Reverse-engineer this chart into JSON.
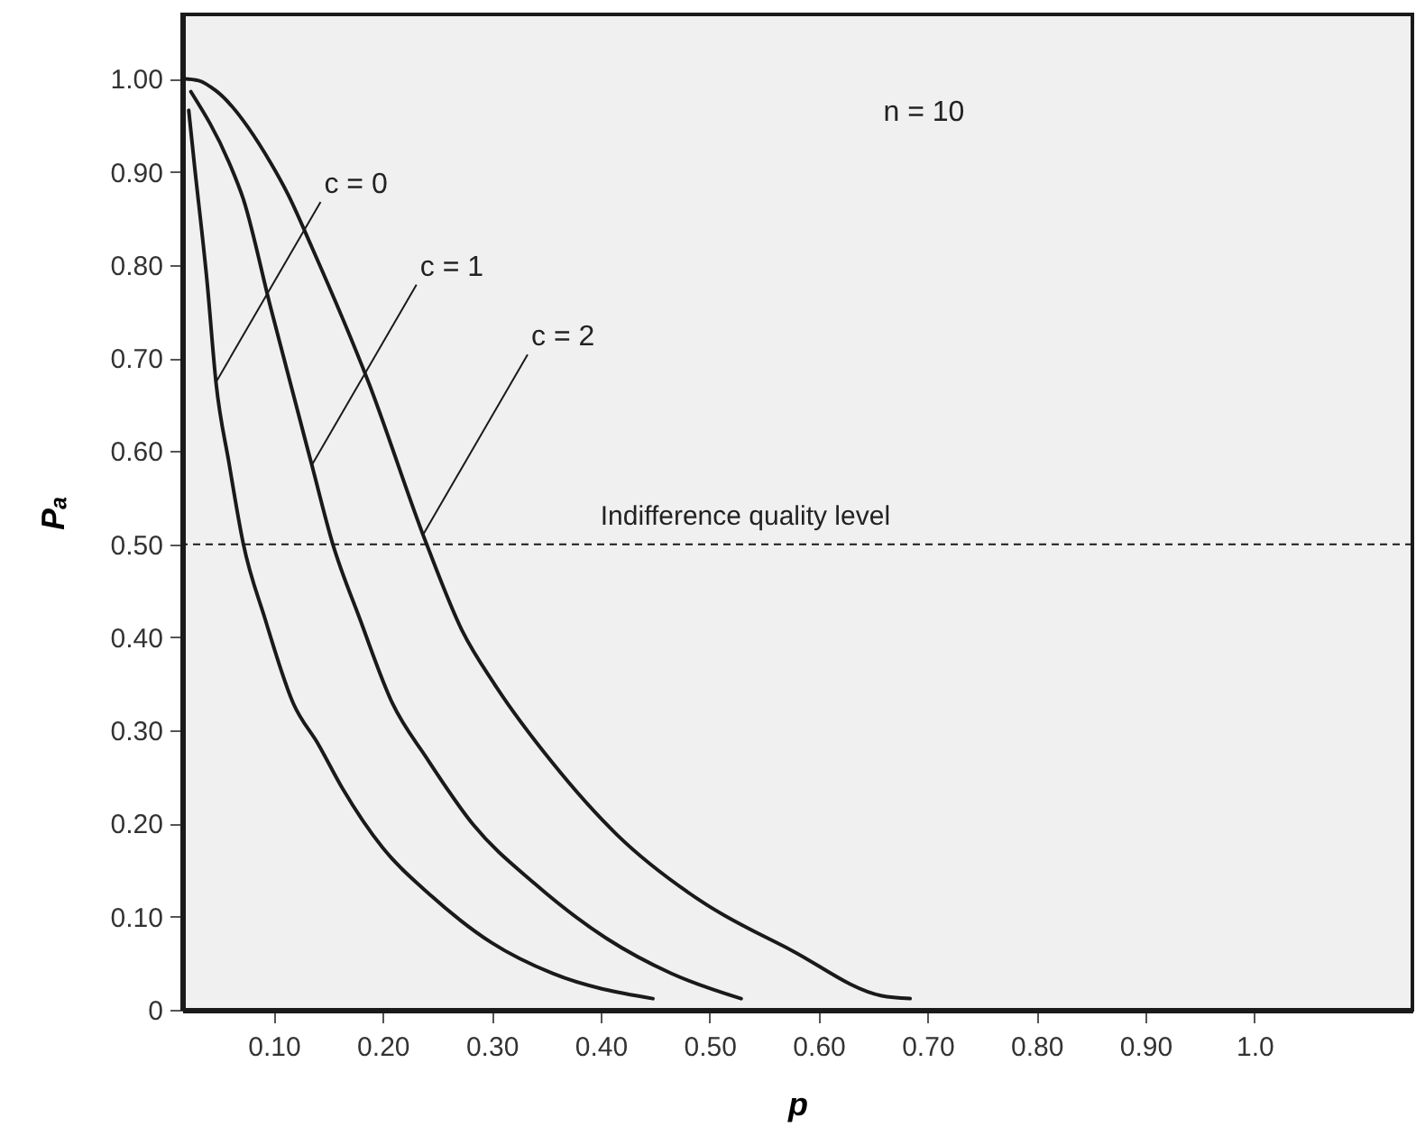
{
  "chart_data": {
    "type": "line",
    "xlabel": "p",
    "ylabel": "Pₐ",
    "xlim": [
      0.016,
      1.145
    ],
    "ylim": [
      0,
      1.069
    ],
    "xticks": [
      {
        "value": 0.1,
        "label": "0.10"
      },
      {
        "value": 0.2,
        "label": "0.20"
      },
      {
        "value": 0.3,
        "label": "0.30"
      },
      {
        "value": 0.4,
        "label": "0.40"
      },
      {
        "value": 0.5,
        "label": "0.50"
      },
      {
        "value": 0.6,
        "label": "0.60"
      },
      {
        "value": 0.7,
        "label": "0.70"
      },
      {
        "value": 0.8,
        "label": "0.80"
      },
      {
        "value": 0.9,
        "label": "0.90"
      },
      {
        "value": 1,
        "label": "1.0"
      }
    ],
    "yticks": [
      0,
      {
        "value": 0.1,
        "label": "0.10"
      },
      {
        "value": 0.2,
        "label": "0.20"
      },
      {
        "value": 0.3,
        "label": "0.30"
      },
      {
        "value": 0.4,
        "label": "0.40"
      },
      {
        "value": 0.5,
        "label": "0.50"
      },
      {
        "value": 0.6,
        "label": "0.60"
      },
      {
        "value": 0.7,
        "label": "0.70"
      },
      {
        "value": 0.8,
        "label": "0.80"
      },
      {
        "value": 0.9,
        "label": "0.90"
      },
      {
        "value": 1,
        "label": "1.00"
      }
    ],
    "grid": false,
    "marker": "none",
    "line_style": "solid",
    "series": [
      {
        "color": "#1a1a1a",
        "x": [
          0.022,
          0.027,
          0.039,
          0.047,
          0.059,
          0.072,
          0.092,
          0.118,
          0.141,
          0.163,
          0.2,
          0.245,
          0.3,
          0.356,
          0.448
        ],
        "values": [
          0.966,
          0.91,
          0.78,
          0.674,
          0.587,
          0.501,
          0.42,
          0.329,
          0.285,
          0.238,
          0.174,
          0.122,
          0.072,
          0.039,
          0.012
        ]
      },
      {
        "color": "#1a1a1a",
        "x": [
          0.024,
          0.059,
          0.072,
          0.097,
          0.135,
          0.154,
          0.179,
          0.209,
          0.24,
          0.283,
          0.339,
          0.405,
          0.465,
          0.529
        ],
        "values": [
          0.986,
          0.91,
          0.871,
          0.755,
          0.585,
          0.501,
          0.42,
          0.329,
          0.271,
          0.199,
          0.136,
          0.077,
          0.039,
          0.012
        ]
      },
      {
        "color": "#1a1a1a",
        "x": [
          0.017,
          0.031,
          0.047,
          0.097,
          0.113,
          0.135,
          0.187,
          0.24,
          0.273,
          0.303,
          0.356,
          0.415,
          0.493,
          0.575,
          0.658,
          0.684
        ],
        "values": [
          1.0,
          0.998,
          0.987,
          0.91,
          0.876,
          0.819,
          0.674,
          0.501,
          0.407,
          0.349,
          0.265,
          0.188,
          0.116,
          0.064,
          0.015,
          0.012
        ]
      }
    ],
    "ref_lines": [
      {
        "axis": "y",
        "value": 0.5,
        "label": "Indifference quality level",
        "line_style": "dashed",
        "color": "#1a1a1a"
      }
    ],
    "annotations": [
      {
        "text": "c = 0",
        "x": 0.047,
        "y": 0.674
      },
      {
        "text": "c = 1",
        "x": 0.135,
        "y": 0.585
      },
      {
        "text": "c = 2",
        "x": 0.237,
        "y": 0.51
      },
      "n = 10"
    ]
  }
}
